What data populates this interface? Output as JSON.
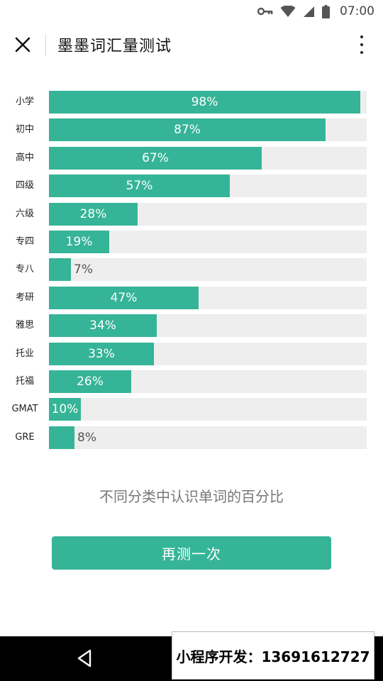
{
  "status_bar": {
    "time": "07:00",
    "icons": [
      "key-icon",
      "wifi-icon",
      "signal-icon",
      "battery-icon"
    ],
    "battery_label": "100"
  },
  "header": {
    "title": "墨墨词汇量测试",
    "close_icon": "close-icon",
    "more_icon": "more-vertical-icon"
  },
  "chart_data": {
    "type": "bar",
    "orientation": "horizontal",
    "categories": [
      "小学",
      "初中",
      "高中",
      "四级",
      "六级",
      "专四",
      "专八",
      "考研",
      "雅思",
      "托业",
      "托福",
      "GMAT",
      "GRE"
    ],
    "values": [
      98,
      87,
      67,
      57,
      28,
      19,
      7,
      47,
      34,
      33,
      26,
      10,
      8
    ],
    "labels": [
      "98%",
      "87%",
      "67%",
      "57%",
      "28%",
      "19%",
      "7%",
      "47%",
      "34%",
      "33%",
      "26%",
      "10%",
      "8%"
    ],
    "xlim": [
      0,
      100
    ],
    "unit": "%",
    "title": "",
    "xlabel": "",
    "ylabel": "",
    "bar_color": "#36b497",
    "track_color": "#eeeeee"
  },
  "main": {
    "caption": "不同分类中认识单词的百分比",
    "retry_label": "再测一次"
  },
  "watermark": {
    "text": "小程序开发：13691612727"
  },
  "colors": {
    "accent": "#36b497",
    "nav_bar": "#000000"
  }
}
